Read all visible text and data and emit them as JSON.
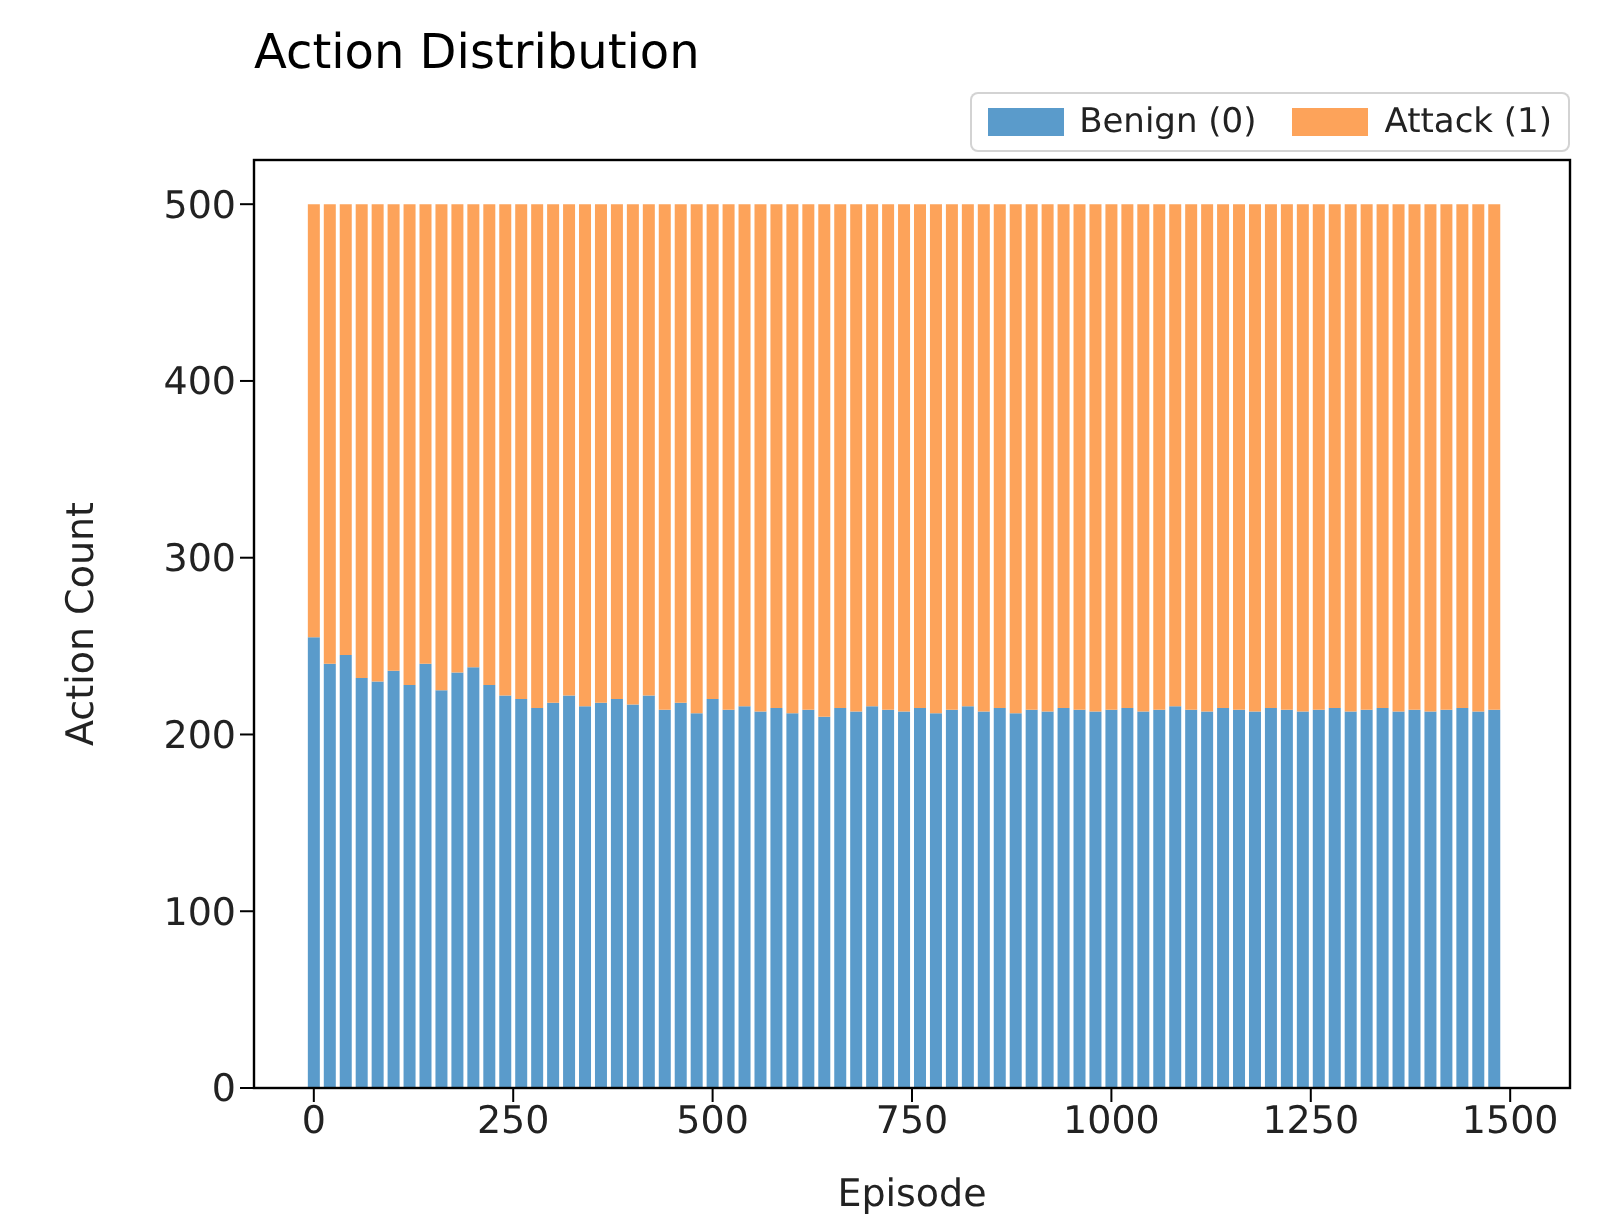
{
  "chart_data": {
    "type": "bar",
    "title": "Action Distribution",
    "xlabel": "Episode",
    "ylabel": "Action Count",
    "stacked": true,
    "x": [
      0,
      20,
      40,
      60,
      80,
      100,
      120,
      140,
      160,
      180,
      200,
      220,
      240,
      260,
      280,
      300,
      320,
      340,
      360,
      380,
      400,
      420,
      440,
      460,
      480,
      500,
      520,
      540,
      560,
      580,
      600,
      620,
      640,
      660,
      680,
      700,
      720,
      740,
      760,
      780,
      800,
      820,
      840,
      860,
      880,
      900,
      920,
      940,
      960,
      980,
      1000,
      1020,
      1040,
      1060,
      1080,
      1100,
      1120,
      1140,
      1160,
      1180,
      1200,
      1220,
      1240,
      1260,
      1280,
      1300,
      1320,
      1340,
      1360,
      1380,
      1400,
      1420,
      1440,
      1460,
      1480
    ],
    "series": [
      {
        "name": "Benign (0)",
        "color": "#5a9bcb",
        "values": [
          255,
          240,
          245,
          232,
          230,
          236,
          228,
          240,
          225,
          235,
          238,
          228,
          222,
          220,
          215,
          218,
          222,
          216,
          218,
          220,
          217,
          222,
          214,
          218,
          212,
          220,
          214,
          216,
          213,
          215,
          212,
          214,
          210,
          215,
          213,
          216,
          214,
          213,
          215,
          212,
          214,
          216,
          213,
          215,
          212,
          214,
          213,
          215,
          214,
          213,
          214,
          215,
          213,
          214,
          216,
          214,
          213,
          215,
          214,
          213,
          215,
          214,
          213,
          214,
          215,
          213,
          214,
          215,
          213,
          214,
          213,
          214,
          215,
          213,
          214
        ]
      },
      {
        "name": "Attack (1)",
        "color": "#fda35a",
        "values": [
          245,
          260,
          255,
          268,
          270,
          264,
          272,
          260,
          275,
          265,
          262,
          272,
          278,
          280,
          285,
          282,
          278,
          284,
          282,
          280,
          283,
          278,
          286,
          282,
          288,
          280,
          286,
          284,
          287,
          285,
          288,
          286,
          290,
          285,
          287,
          284,
          286,
          287,
          285,
          288,
          286,
          284,
          287,
          285,
          288,
          286,
          287,
          285,
          286,
          287,
          286,
          285,
          287,
          286,
          284,
          286,
          287,
          285,
          286,
          287,
          285,
          286,
          287,
          286,
          285,
          287,
          286,
          285,
          287,
          286,
          287,
          286,
          285,
          287,
          286
        ]
      }
    ],
    "xlim": [
      -75,
      1575
    ],
    "xticks": [
      0,
      250,
      500,
      750,
      1000,
      1250,
      1500
    ],
    "ylim": [
      0,
      525
    ],
    "yticks": [
      0,
      100,
      200,
      300,
      400,
      500
    ],
    "legend": "top right"
  }
}
